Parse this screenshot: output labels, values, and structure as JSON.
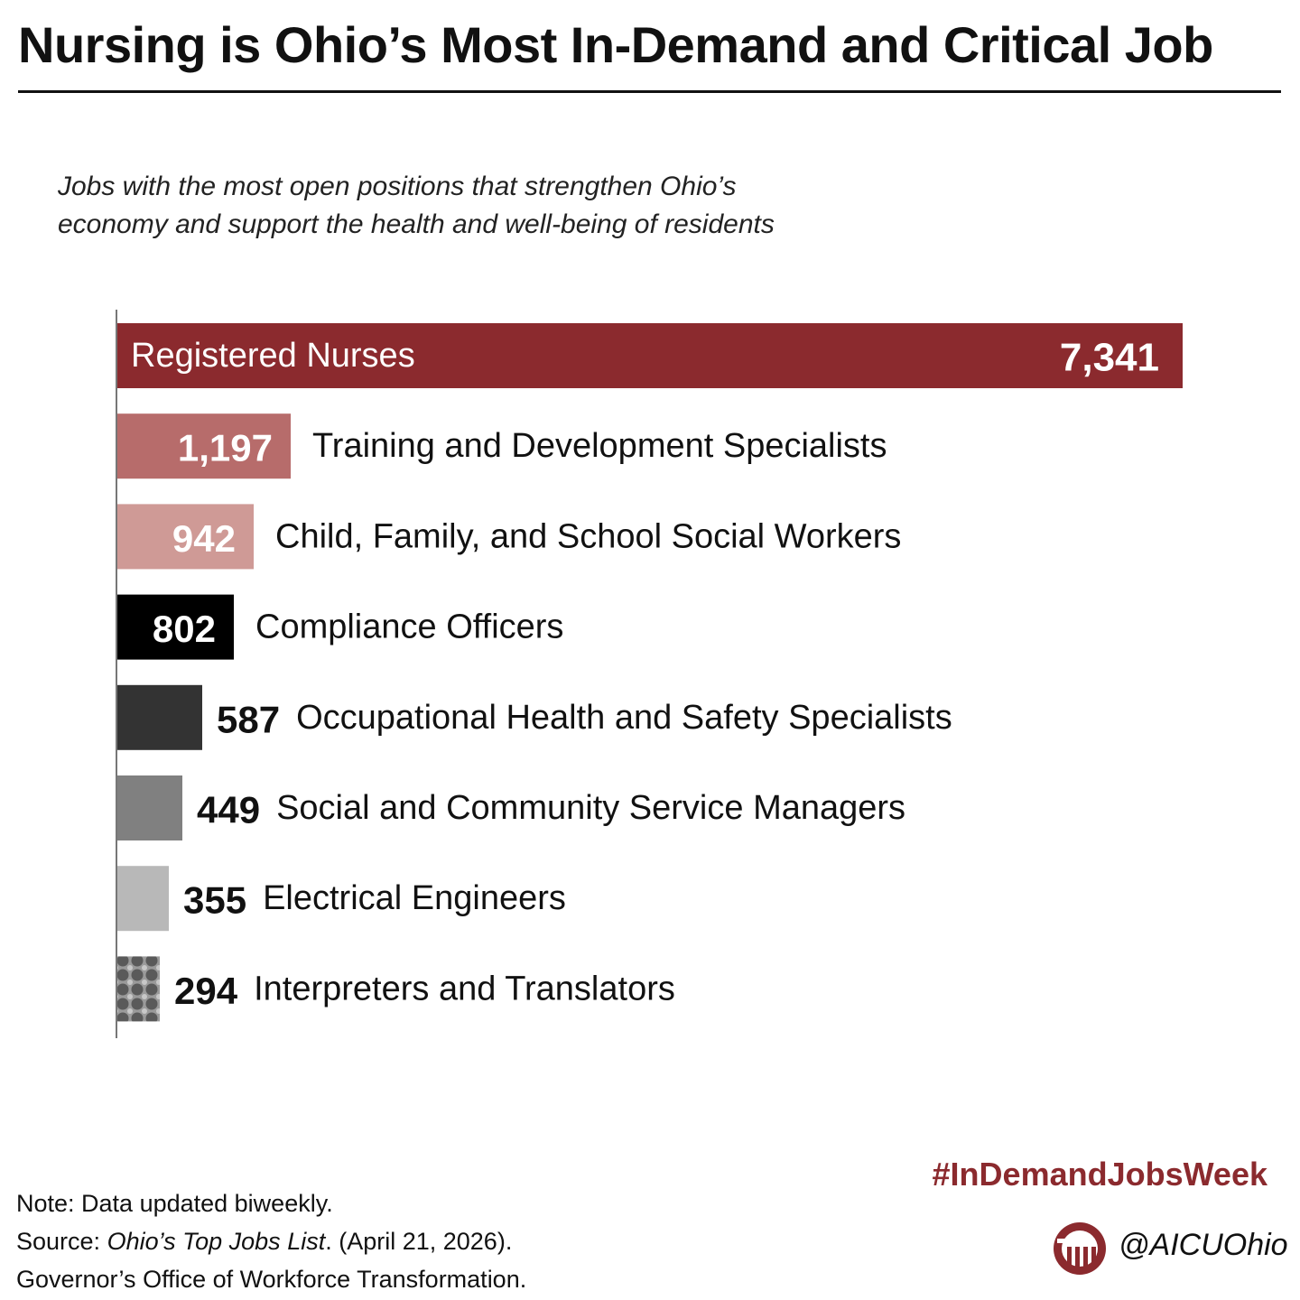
{
  "header": {
    "title": "Nursing is Ohio’s Most In-Demand and Critical Job",
    "subtitle_line1": "Jobs with the most open positions that strengthen Ohio’s",
    "subtitle_line2": "economy and support the health and well-being of residents"
  },
  "chart_data": {
    "type": "bar",
    "orientation": "horizontal",
    "title": "",
    "xlabel": "",
    "ylabel": "",
    "xlim": [
      0,
      7341
    ],
    "grid": false,
    "legend": "none",
    "categories": [
      "Registered Nurses",
      "Training and Development Specialists",
      "Child, Family, and School Social Workers",
      "Compliance Officers",
      "Occupational Health and Safety Specialists",
      "Social and Community Service Managers",
      "Electrical Engineers",
      "Interpreters and Translators"
    ],
    "values": [
      7341,
      1197,
      942,
      802,
      587,
      449,
      355,
      294
    ],
    "value_labels": [
      "7,341",
      "1,197",
      "942",
      "802",
      "587",
      "449",
      "355",
      "294"
    ],
    "colors": [
      "#8b2a2e",
      "#b76c6b",
      "#cf9a96",
      "#000000",
      "#333333",
      "#808080",
      "#b8b8b8",
      "pattern"
    ]
  },
  "footer": {
    "hashtag": "#InDemandJobsWeek",
    "note": "Note: Data updated biweekly.",
    "source_prefix": "Source: ",
    "source_title": "Ohio’s Top Jobs List",
    "source_suffix": ". (April 21, 2026).",
    "source_org": "Governor’s Office of Workforce Transformation.",
    "handle": "@AICUOhio"
  }
}
